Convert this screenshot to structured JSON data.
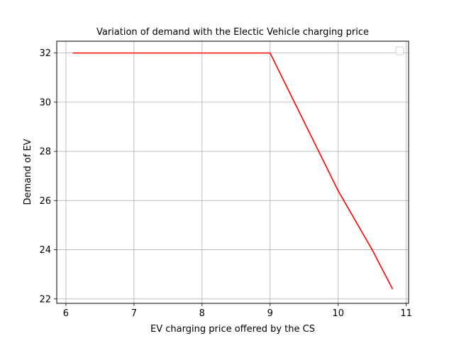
{
  "chart_data": {
    "type": "line",
    "title": "Variation of demand with the Electic Vehicle charging price",
    "xlabel": "EV charging price offered by the CS",
    "ylabel": "Demand of EV",
    "xlim": [
      5.865,
      11.035
    ],
    "ylim": [
      21.82,
      32.48
    ],
    "xticks": [
      6,
      7,
      8,
      9,
      10,
      11
    ],
    "yticks": [
      22,
      24,
      26,
      28,
      30,
      32
    ],
    "grid": true,
    "legend": "top-right",
    "series": [
      {
        "color": "#ff0000",
        "x": [
          6.1,
          6.5,
          7.0,
          7.5,
          8.0,
          8.5,
          9.0,
          9.5,
          10.0,
          10.5,
          10.8
        ],
        "y": [
          32,
          32,
          32,
          32,
          32,
          32,
          32,
          29.2,
          26.4,
          24.0,
          22.4
        ]
      }
    ]
  }
}
